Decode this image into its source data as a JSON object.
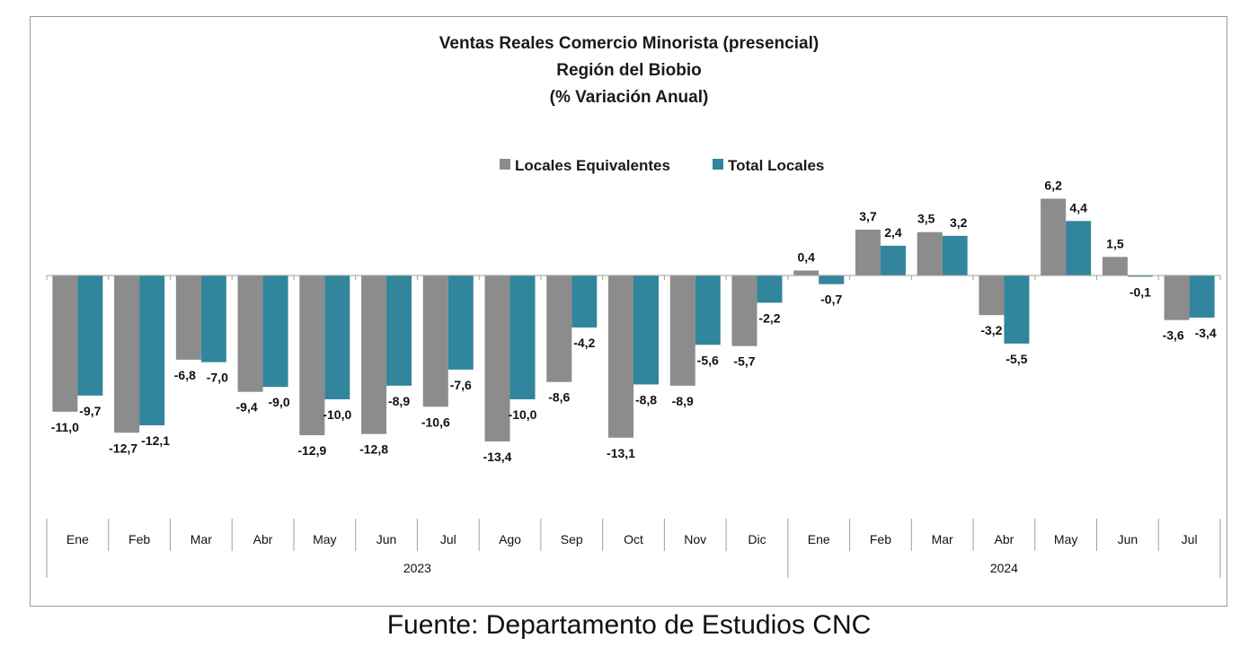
{
  "chart_data": {
    "type": "bar",
    "title": [
      "Ventas Reales Comercio Minorista (presencial)",
      "Región del Biobio",
      "(% Variación Anual)"
    ],
    "categories": [
      "Ene",
      "Feb",
      "Mar",
      "Abr",
      "May",
      "Jun",
      "Jul",
      "Ago",
      "Sep",
      "Oct",
      "Nov",
      "Dic",
      "Ene",
      "Feb",
      "Mar",
      "Abr",
      "May",
      "Jun",
      "Jul"
    ],
    "groups": [
      {
        "label": "2023",
        "count": 12
      },
      {
        "label": "2024",
        "count": 7
      }
    ],
    "series": [
      {
        "name": "Locales Equivalentes",
        "color": "#8c8c8c",
        "values": [
          -11.0,
          -12.7,
          -6.8,
          -9.4,
          -12.9,
          -12.8,
          -10.6,
          -13.4,
          -8.6,
          -13.1,
          -8.9,
          -5.7,
          0.4,
          3.7,
          3.5,
          -3.2,
          6.2,
          1.5,
          -3.6
        ],
        "labels": [
          "-11,0",
          "-12,7",
          "-6,8",
          "-9,4",
          "-12,9",
          "-12,8",
          "-10,6",
          "-13,4",
          "-8,6",
          "-13,1",
          "-8,9",
          "-5,7",
          "0,4",
          "3,7",
          "3,5",
          "-3,2",
          "6,2",
          "1,5",
          "-3,6"
        ]
      },
      {
        "name": "Total Locales",
        "color": "#31859c",
        "values": [
          -9.7,
          -12.1,
          -7.0,
          -9.0,
          -10.0,
          -8.9,
          -7.6,
          -10.0,
          -4.2,
          -8.8,
          -5.6,
          -2.2,
          -0.7,
          2.4,
          3.2,
          -5.5,
          4.4,
          -0.1,
          -3.4
        ],
        "labels": [
          "-9,7",
          "-12,1",
          "-7,0",
          "-9,0",
          "-10,0",
          "-8,9",
          "-7,6",
          "-10,0",
          "-4,2",
          "-8,8",
          "-5,6",
          "-2,2",
          "-0,7",
          "2,4",
          "3,2",
          "-5,5",
          "4,4",
          "-0,1",
          "-3,4"
        ]
      }
    ],
    "legend_position": "top-center",
    "grid": false
  },
  "source": "Fuente: Departamento de Estudios CNC"
}
